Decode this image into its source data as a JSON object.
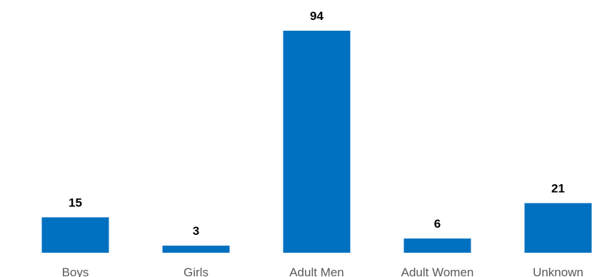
{
  "chart_data": {
    "type": "bar",
    "categories": [
      "Boys",
      "Girls",
      "Adult Men",
      "Adult Women",
      "Unknown"
    ],
    "values": [
      15,
      3,
      94,
      6,
      21
    ],
    "title": "",
    "xlabel": "",
    "ylabel": "",
    "ylim": [
      0,
      94
    ],
    "grid": false,
    "bar_color": "#0070C0",
    "data_labels": true
  }
}
